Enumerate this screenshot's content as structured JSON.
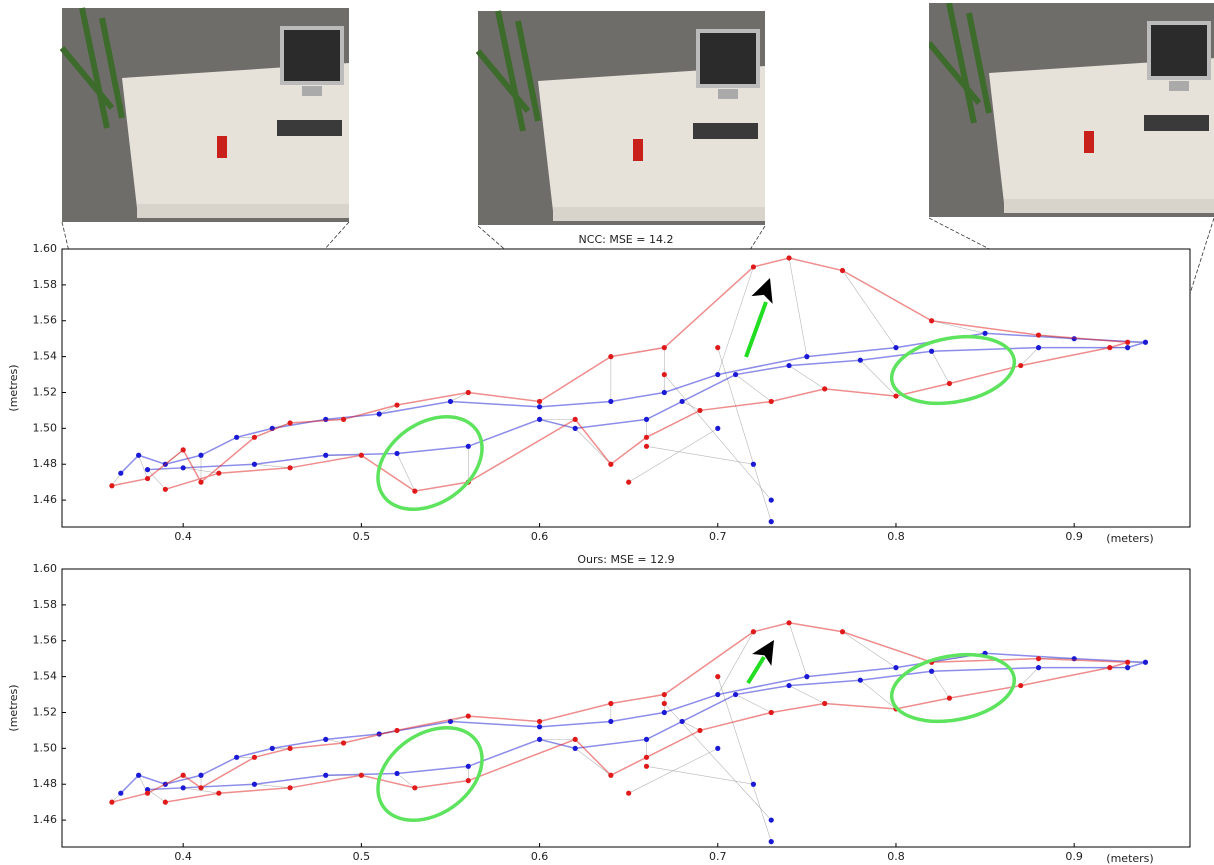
{
  "chart_data": [
    {
      "type": "scatter",
      "title": "NCC: MSE = 14.2",
      "xlabel": "(meters)",
      "ylabel": "(metres)",
      "xlim": [
        0.332,
        0.965
      ],
      "ylim": [
        1.445,
        1.6
      ],
      "xticks": [
        0.4,
        0.5,
        0.6,
        0.7,
        0.8,
        0.9
      ],
      "yticks": [
        1.46,
        1.48,
        {
          "value": 1.5,
          "label": "1.50"
        },
        1.52,
        1.54,
        1.56,
        1.58,
        {
          "value": 1.6,
          "label": "1.60"
        }
      ],
      "series": [
        {
          "color": "#1a1ad6",
          "x": [
            0.365,
            0.375,
            0.39,
            0.41,
            0.43,
            0.45,
            0.48,
            0.51,
            0.55,
            0.6,
            0.64,
            0.67,
            0.7,
            0.75,
            0.8,
            0.85,
            0.9,
            0.94,
            0.93,
            0.88,
            0.82,
            0.78,
            0.74,
            0.71,
            0.68,
            0.66,
            0.62,
            0.6,
            0.56,
            0.52,
            0.48,
            0.44,
            0.4,
            0.38,
            0.7,
            0.72,
            0.73,
            0.73
          ],
          "y": [
            1.475,
            1.485,
            1.48,
            1.485,
            1.495,
            1.5,
            1.505,
            1.508,
            1.515,
            1.512,
            1.515,
            1.52,
            1.53,
            1.54,
            1.545,
            1.553,
            1.55,
            1.548,
            1.545,
            1.545,
            1.543,
            1.538,
            1.535,
            1.53,
            1.515,
            1.505,
            1.5,
            1.505,
            1.49,
            1.486,
            1.485,
            1.48,
            1.478,
            1.477,
            1.5,
            1.48,
            1.46,
            1.448
          ]
        },
        {
          "color": "#e01a1a",
          "x": [
            0.36,
            0.38,
            0.4,
            0.41,
            0.44,
            0.46,
            0.49,
            0.52,
            0.56,
            0.6,
            0.64,
            0.67,
            0.72,
            0.74,
            0.77,
            0.82,
            0.88,
            0.93,
            0.92,
            0.87,
            0.83,
            0.8,
            0.76,
            0.73,
            0.69,
            0.66,
            0.64,
            0.62,
            0.56,
            0.53,
            0.5,
            0.46,
            0.42,
            0.39,
            0.65,
            0.66,
            0.67,
            0.7
          ],
          "y": [
            1.468,
            1.472,
            1.488,
            1.47,
            1.495,
            1.503,
            1.505,
            1.513,
            1.52,
            1.515,
            1.54,
            1.545,
            1.59,
            1.595,
            1.588,
            1.56,
            1.552,
            1.548,
            1.545,
            1.535,
            1.525,
            1.518,
            1.522,
            1.515,
            1.51,
            1.495,
            1.48,
            1.505,
            1.47,
            1.465,
            1.485,
            1.478,
            1.475,
            1.466,
            1.47,
            1.49,
            1.53,
            1.545
          ]
        }
      ]
    },
    {
      "type": "scatter",
      "title": "Ours: MSE = 12.9",
      "xlabel": "(meters)",
      "ylabel": "(metres)",
      "xlim": [
        0.332,
        0.965
      ],
      "ylim": [
        1.445,
        1.6
      ],
      "xticks": [
        0.4,
        0.5,
        0.6,
        0.7,
        0.8,
        0.9
      ],
      "yticks": [
        1.46,
        1.48,
        {
          "value": 1.5,
          "label": "1.50"
        },
        1.52,
        1.54,
        1.56,
        1.58,
        {
          "value": 1.6,
          "label": "1.60"
        }
      ],
      "series": [
        {
          "color": "#1a1ad6",
          "x": [
            0.365,
            0.375,
            0.39,
            0.41,
            0.43,
            0.45,
            0.48,
            0.51,
            0.55,
            0.6,
            0.64,
            0.67,
            0.7,
            0.75,
            0.8,
            0.85,
            0.9,
            0.94,
            0.93,
            0.88,
            0.82,
            0.78,
            0.74,
            0.71,
            0.68,
            0.66,
            0.62,
            0.6,
            0.56,
            0.52,
            0.48,
            0.44,
            0.4,
            0.38,
            0.7,
            0.72,
            0.73,
            0.73
          ],
          "y": [
            1.475,
            1.485,
            1.48,
            1.485,
            1.495,
            1.5,
            1.505,
            1.508,
            1.515,
            1.512,
            1.515,
            1.52,
            1.53,
            1.54,
            1.545,
            1.553,
            1.55,
            1.548,
            1.545,
            1.545,
            1.543,
            1.538,
            1.535,
            1.53,
            1.515,
            1.505,
            1.5,
            1.505,
            1.49,
            1.486,
            1.485,
            1.48,
            1.478,
            1.477,
            1.5,
            1.48,
            1.46,
            1.448
          ]
        },
        {
          "color": "#e01a1a",
          "x": [
            0.36,
            0.38,
            0.4,
            0.41,
            0.44,
            0.46,
            0.49,
            0.52,
            0.56,
            0.6,
            0.64,
            0.67,
            0.72,
            0.74,
            0.77,
            0.82,
            0.88,
            0.93,
            0.92,
            0.87,
            0.83,
            0.8,
            0.76,
            0.73,
            0.69,
            0.66,
            0.64,
            0.62,
            0.56,
            0.53,
            0.5,
            0.46,
            0.42,
            0.39,
            0.65,
            0.66,
            0.67,
            0.7
          ],
          "y": [
            1.47,
            1.475,
            1.485,
            1.478,
            1.495,
            1.5,
            1.503,
            1.51,
            1.518,
            1.515,
            1.525,
            1.53,
            1.565,
            1.57,
            1.565,
            1.548,
            1.55,
            1.548,
            1.545,
            1.535,
            1.528,
            1.522,
            1.525,
            1.52,
            1.51,
            1.495,
            1.485,
            1.505,
            1.482,
            1.478,
            1.485,
            1.478,
            1.475,
            1.47,
            1.475,
            1.49,
            1.525,
            1.54
          ]
        }
      ]
    }
  ]
}
